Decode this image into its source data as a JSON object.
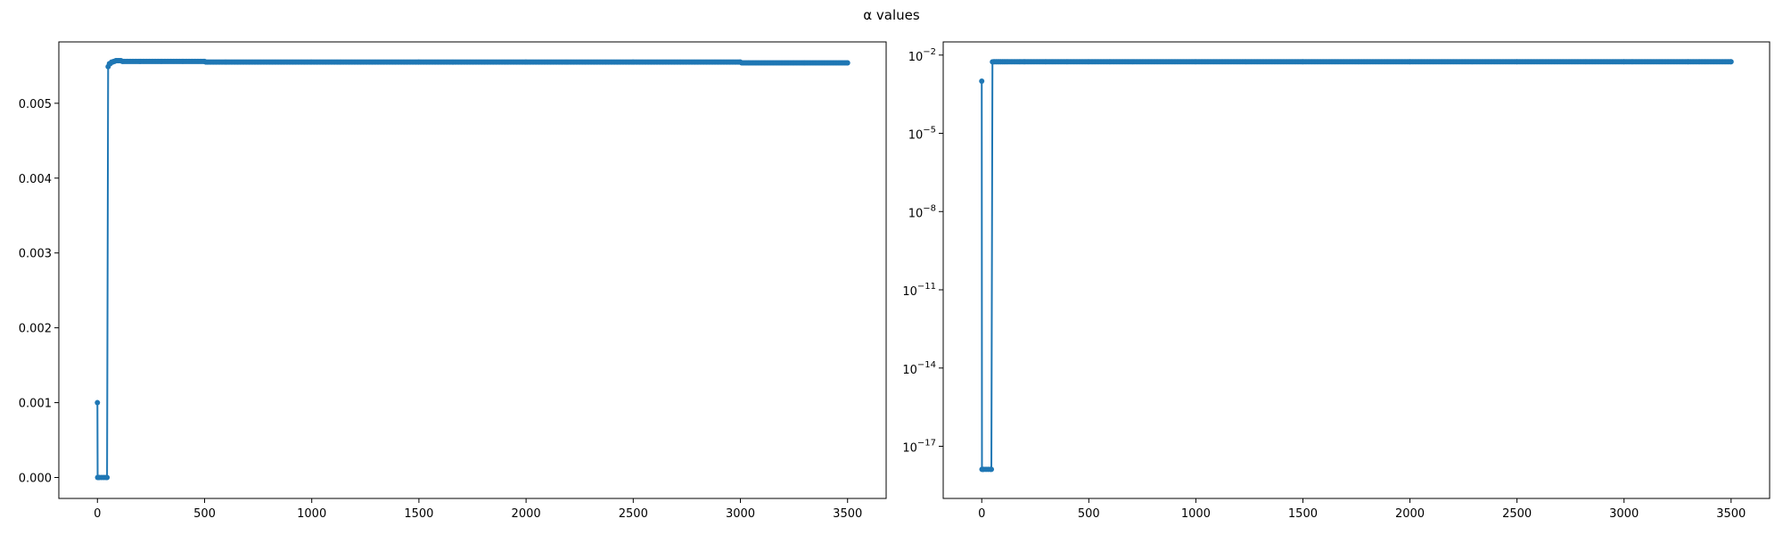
{
  "figure": {
    "title": "α values"
  },
  "chart_data": [
    {
      "type": "line",
      "title": "",
      "xlabel": "",
      "ylabel": "",
      "yscale": "linear",
      "xlim": [
        -180,
        3680
      ],
      "ylim": [
        -0.00028,
        0.00582
      ],
      "xticks": [
        0,
        500,
        1000,
        1500,
        2000,
        2500,
        3000,
        3500
      ],
      "yticks": [
        0.0,
        0.001,
        0.002,
        0.003,
        0.004,
        0.005
      ],
      "ytick_labels": [
        "0.000",
        "0.001",
        "0.002",
        "0.003",
        "0.004",
        "0.005"
      ],
      "grid": false,
      "marker": "circle",
      "color": "#1f77b4",
      "series": [
        {
          "x": [
            0,
            1,
            5,
            10,
            20,
            30,
            40,
            45,
            50,
            60,
            70,
            80,
            90,
            100,
            110,
            120,
            150,
            200,
            300,
            400,
            500,
            560,
            600,
            1000,
            1500,
            2000,
            2500,
            3000,
            3040,
            3100,
            3300,
            3500
          ],
          "y": [
            0.001,
            0.0,
            0.0,
            0.0,
            0.0,
            0.0,
            0.0,
            0.0,
            0.00549,
            0.00553,
            0.00555,
            0.00556,
            0.00557,
            0.00557,
            0.00557,
            0.00556,
            0.00556,
            0.00556,
            0.00556,
            0.00556,
            0.00556,
            0.00555,
            0.00555,
            0.00555,
            0.00555,
            0.00555,
            0.00555,
            0.00555,
            0.00554,
            0.00554,
            0.00554,
            0.00554
          ]
        }
      ]
    },
    {
      "type": "line",
      "title": "",
      "xlabel": "",
      "ylabel": "",
      "yscale": "log",
      "xlim": [
        -180,
        3680
      ],
      "ylim": [
        1e-19,
        0.032
      ],
      "xticks": [
        0,
        500,
        1000,
        1500,
        2000,
        2500,
        3000,
        3500
      ],
      "yticks": [
        1e-17,
        1e-14,
        1e-11,
        1e-08,
        1e-05,
        0.01
      ],
      "ytick_base": "10",
      "ytick_exponents": [
        "−17",
        "−14",
        "−11",
        "−8",
        "−5",
        "−2"
      ],
      "grid": false,
      "marker": "circle",
      "color": "#1f77b4",
      "series": [
        {
          "x": [
            0,
            1,
            5,
            10,
            20,
            30,
            40,
            45,
            50,
            60,
            70,
            80,
            90,
            100,
            110,
            120,
            150,
            200,
            300,
            400,
            500,
            560,
            600,
            1000,
            1500,
            2000,
            2500,
            3000,
            3040,
            3100,
            3300,
            3500
          ],
          "y": [
            0.001,
            1.3e-18,
            1.3e-18,
            1.3e-18,
            1.3e-18,
            1.3e-18,
            1.3e-18,
            1.3e-18,
            0.00549,
            0.00553,
            0.00555,
            0.00556,
            0.00557,
            0.00557,
            0.00557,
            0.00556,
            0.00556,
            0.00556,
            0.00556,
            0.00556,
            0.00556,
            0.00555,
            0.00555,
            0.00555,
            0.00555,
            0.00555,
            0.00555,
            0.00555,
            0.00554,
            0.00554,
            0.00554,
            0.00554
          ]
        }
      ]
    }
  ]
}
